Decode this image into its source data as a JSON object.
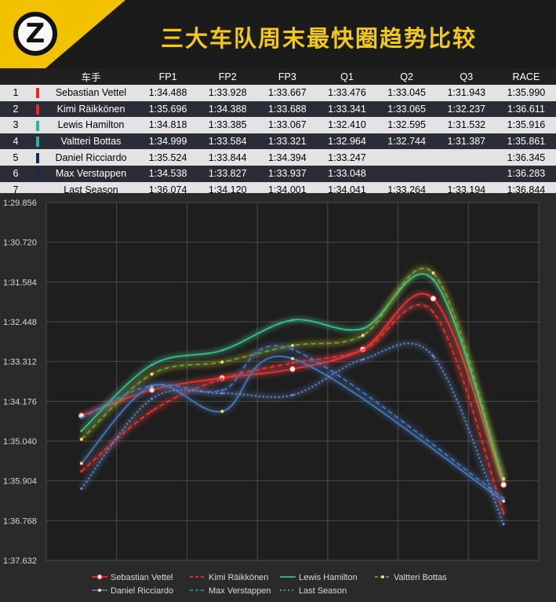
{
  "header": {
    "title": "三大车队周末最快圈趋势比较",
    "logo_letter": "Z"
  },
  "table": {
    "header_driver": "车手",
    "sessions": [
      "FP1",
      "FP2",
      "FP3",
      "Q1",
      "Q2",
      "Q3",
      "RACE"
    ],
    "rows": [
      {
        "pos": "1",
        "driver": "Sebastian Vettel",
        "color": "#e8272b",
        "times": [
          "1:34.488",
          "1:33.928",
          "1:33.667",
          "1:33.476",
          "1:33.045",
          "1:31.943",
          "1:35.990"
        ]
      },
      {
        "pos": "2",
        "driver": "Kimi Räikkönen",
        "color": "#e8272b",
        "times": [
          "1:35.696",
          "1:34.388",
          "1:33.688",
          "1:33.341",
          "1:33.065",
          "1:32.237",
          "1:36.611"
        ]
      },
      {
        "pos": "3",
        "driver": "Lewis Hamilton",
        "color": "#2bb5a0",
        "times": [
          "1:34.818",
          "1:33.385",
          "1:33.067",
          "1:32.410",
          "1:32.595",
          "1:31.532",
          "1:35.916"
        ]
      },
      {
        "pos": "4",
        "driver": "Valtteri Bottas",
        "color": "#2bb5a0",
        "times": [
          "1:34.999",
          "1:33.584",
          "1:33.321",
          "1:32.964",
          "1:32.744",
          "1:31.387",
          "1:35.861"
        ]
      },
      {
        "pos": "5",
        "driver": "Daniel Ricciardo",
        "color": "#1a2a56",
        "times": [
          "1:35.524",
          "1:33.844",
          "1:34.394",
          "1:33.247",
          "",
          "",
          "1:36.345"
        ]
      },
      {
        "pos": "6",
        "driver": "Max Verstappen",
        "color": "#1a2a56",
        "times": [
          "1:34.538",
          "1:33.827",
          "1:33.937",
          "1:33.048",
          "",
          "",
          "1:36.283"
        ]
      },
      {
        "pos": "7",
        "driver": "Last Season",
        "color": "",
        "times": [
          "1:36.074",
          "1:34.120",
          "1:34.001",
          "1:34.041",
          "1:33.264",
          "1:33.194",
          "1:36.844"
        ]
      }
    ]
  },
  "chart_data": {
    "type": "line",
    "title": "",
    "xlabel": "",
    "ylabel": "",
    "categories": [
      "FP1",
      "FP2",
      "FP3",
      "Q1",
      "Q2",
      "Q3",
      "RACE"
    ],
    "y_tick_labels": [
      "1:29.856",
      "1:30.720",
      "1:31.584",
      "1:32.448",
      "1:33.312",
      "1:34.176",
      "1:35.040",
      "1:35.904",
      "1:36.768",
      "1:37.632"
    ],
    "ylim_seconds": [
      89.856,
      97.632
    ],
    "y_inverted": true,
    "grid": true,
    "legend_position": "bottom",
    "series": [
      {
        "name": "Sebastian Vettel",
        "color": "#ff2a2a",
        "style": "solid",
        "marker": "circle",
        "glow": "#ff5555",
        "values": [
          94.488,
          93.928,
          93.667,
          93.476,
          93.045,
          91.943,
          95.99
        ]
      },
      {
        "name": "Kimi Räikkönen",
        "color": "#ff2a2a",
        "style": "dashed",
        "marker": "none",
        "glow": "#ff4444",
        "values": [
          95.696,
          94.388,
          93.688,
          93.341,
          93.065,
          92.237,
          96.611
        ]
      },
      {
        "name": "Lewis Hamilton",
        "color": "#3dbf8a",
        "style": "solid",
        "marker": "none",
        "glow": "#4ce0a0",
        "values": [
          94.818,
          93.385,
          93.067,
          92.41,
          92.595,
          91.532,
          95.916
        ]
      },
      {
        "name": "Valtteri Bottas",
        "color": "#4ea86a",
        "style": "dashed",
        "marker": "dot",
        "glow": "#d8c000",
        "values": [
          94.999,
          93.584,
          93.321,
          92.964,
          92.744,
          91.387,
          95.861
        ]
      },
      {
        "name": "Daniel Ricciardo",
        "color": "#4a78b8",
        "style": "solid",
        "marker": "dot",
        "glow": "#3d6fb0",
        "values": [
          95.524,
          93.844,
          94.394,
          93.247,
          null,
          null,
          96.345
        ]
      },
      {
        "name": "Max Verstappen",
        "color": "#4a78b8",
        "style": "dashed",
        "marker": "none",
        "glow": "#3d6fb0",
        "values": [
          94.538,
          93.827,
          93.937,
          93.048,
          null,
          null,
          96.283
        ]
      },
      {
        "name": "Last Season",
        "color": "#6f8fc8",
        "style": "dotted",
        "marker": "none",
        "glow": "#5a7fc0",
        "values": [
          96.074,
          94.12,
          94.001,
          94.041,
          93.264,
          93.194,
          96.844
        ]
      }
    ]
  }
}
